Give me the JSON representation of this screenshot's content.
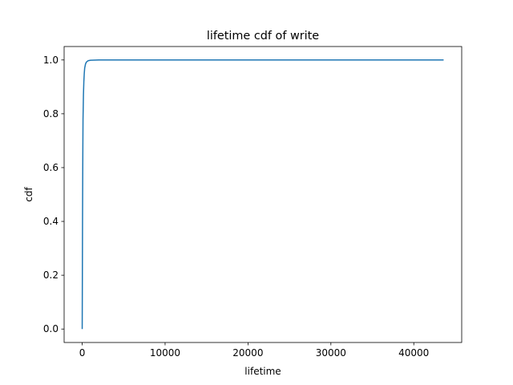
{
  "chart_data": {
    "type": "line",
    "title": "lifetime cdf of write",
    "xlabel": "lifetime",
    "ylabel": "cdf",
    "xlim": [
      -2180,
      45780
    ],
    "ylim": [
      -0.05,
      1.05
    ],
    "xticks": [
      0,
      10000,
      20000,
      30000,
      40000
    ],
    "xtick_labels": [
      "0",
      "10000",
      "20000",
      "30000",
      "40000"
    ],
    "yticks": [
      0.0,
      0.2,
      0.4,
      0.6,
      0.8,
      1.0
    ],
    "ytick_labels": [
      "0.0",
      "0.2",
      "0.4",
      "0.6",
      "0.8",
      "1.0"
    ],
    "grid": false,
    "legend": "none",
    "series": [
      {
        "color": "#1f77b4",
        "x": [
          0,
          20,
          40,
          60,
          80,
          100,
          150,
          200,
          250,
          300,
          400,
          500,
          700,
          1000,
          2000,
          5000,
          10000,
          20000,
          30000,
          43600
        ],
        "y": [
          0.0,
          0.2,
          0.4,
          0.55,
          0.68,
          0.78,
          0.87,
          0.92,
          0.95,
          0.97,
          0.985,
          0.992,
          0.997,
          0.999,
          1.0,
          1.0,
          1.0,
          1.0,
          1.0,
          1.0
        ]
      }
    ]
  }
}
